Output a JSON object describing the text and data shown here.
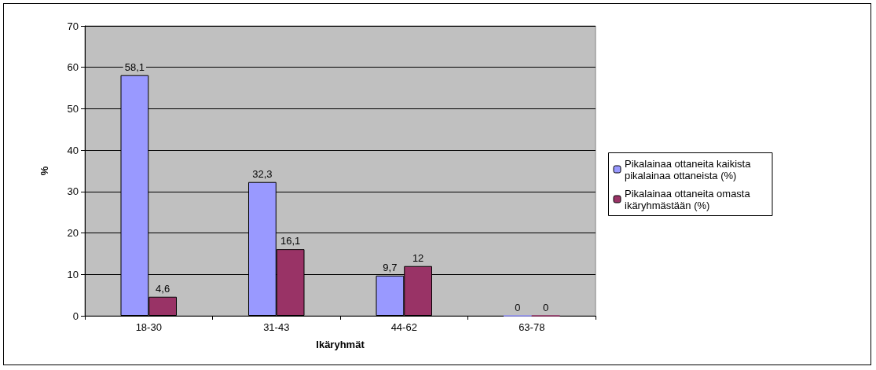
{
  "chart_data": {
    "type": "bar",
    "xlabel": "Ikäryhmät",
    "ylabel": "%",
    "categories": [
      "18-30",
      "31-43",
      "44-62",
      "63-78"
    ],
    "series": [
      {
        "name": "Pikalainaa ottaneita kaikista pikalainaa ottaneista (%)",
        "color": "#9999ff",
        "values": [
          58.1,
          32.3,
          9.7,
          0
        ],
        "value_labels": [
          "58,1",
          "32,3",
          "9,7",
          "0"
        ]
      },
      {
        "name": "Pikalainaa ottaneita omasta ikäryhmästään (%)",
        "color": "#993366",
        "values": [
          4.6,
          16.1,
          12,
          0
        ],
        "value_labels": [
          "4,6",
          "16,1",
          "12",
          "0"
        ]
      }
    ],
    "ylim": [
      0,
      70
    ],
    "yticks": [
      0,
      10,
      20,
      30,
      40,
      50,
      60,
      70
    ],
    "grid": "y",
    "legend": "right"
  }
}
